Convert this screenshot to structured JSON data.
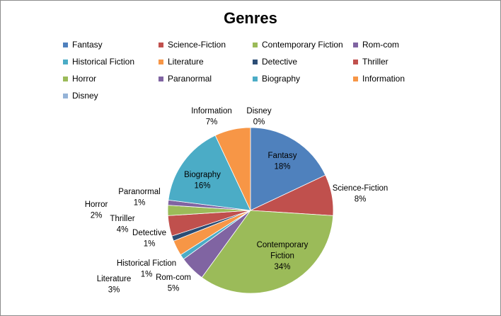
{
  "chart_data": {
    "type": "pie",
    "title": "Genres",
    "legend_position": "top",
    "slices": [
      {
        "label": "Fantasy",
        "percent": 18,
        "color": "#4F81BD"
      },
      {
        "label": "Science-Fiction",
        "percent": 8,
        "color": "#C0504D"
      },
      {
        "label": "Contemporary Fiction",
        "percent": 34,
        "color": "#9BBB59"
      },
      {
        "label": "Rom-com",
        "percent": 5,
        "color": "#8064A2"
      },
      {
        "label": "Historical Fiction",
        "percent": 1,
        "color": "#4BACC6"
      },
      {
        "label": "Literature",
        "percent": 3,
        "color": "#F79646"
      },
      {
        "label": "Detective",
        "percent": 1,
        "color": "#2C4D75"
      },
      {
        "label": "Thriller",
        "percent": 4,
        "color": "#C0504D"
      },
      {
        "label": "Horror",
        "percent": 2,
        "color": "#9BBB59"
      },
      {
        "label": "Paranormal",
        "percent": 1,
        "color": "#8064A2"
      },
      {
        "label": "Biography",
        "percent": 16,
        "color": "#4BACC6"
      },
      {
        "label": "Information",
        "percent": 7,
        "color": "#F79646"
      },
      {
        "label": "Disney",
        "percent": 0,
        "color": "#95B3D7"
      }
    ]
  }
}
